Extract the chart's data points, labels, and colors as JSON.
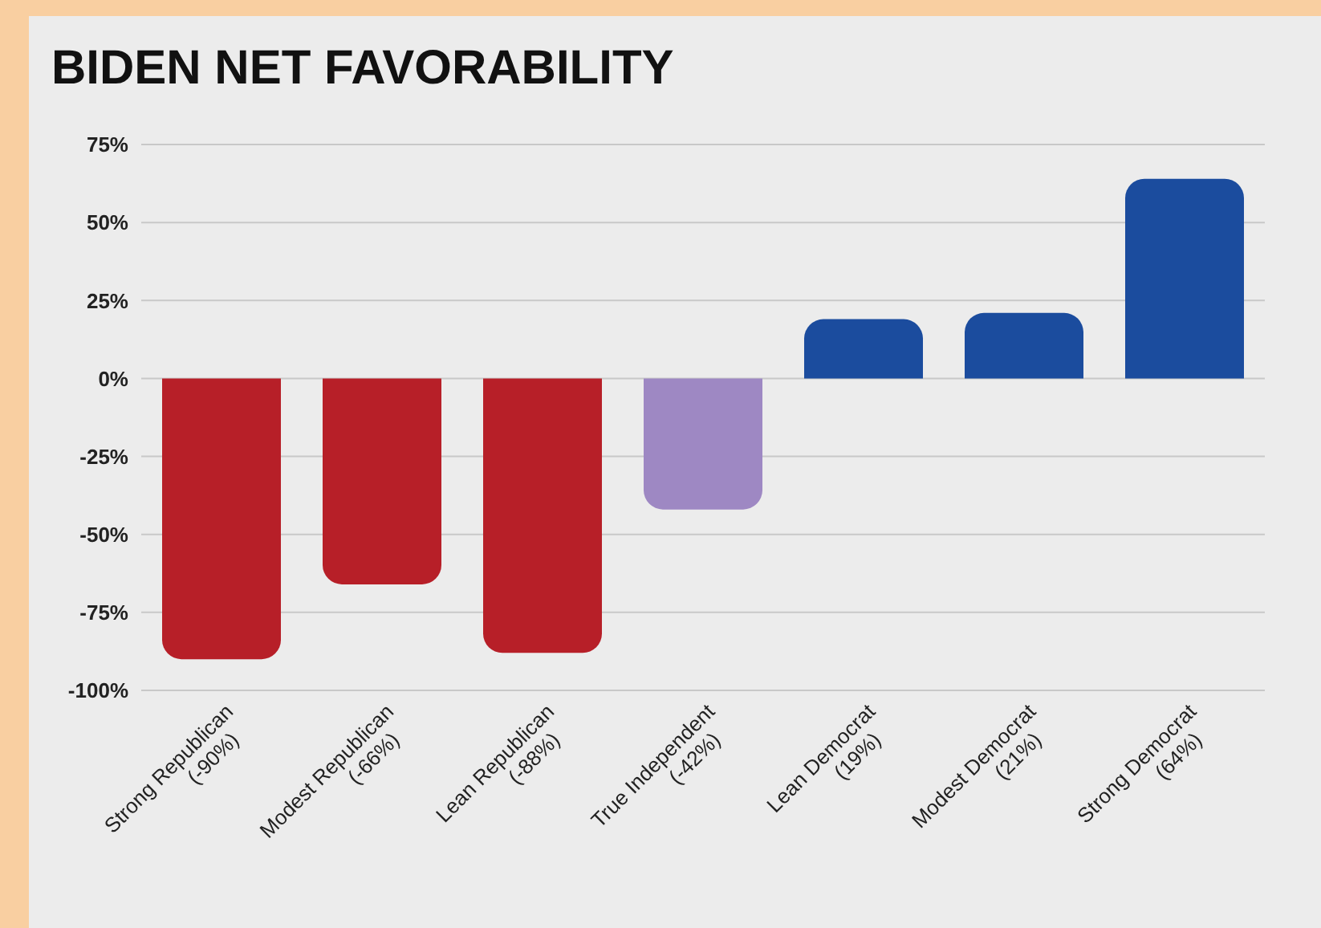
{
  "chart_data": {
    "type": "bar",
    "title": "BIDEN NET FAVORABILITY",
    "categories": [
      "Strong Republican\n(-90%)",
      "Modest Republican\n(-66%)",
      "Lean Republican\n(-88%)",
      "True Independent\n(-42%)",
      "Lean Democrat\n(19%)",
      "Modest Democrat\n(21%)",
      "Strong Democrat\n(64%)"
    ],
    "values": [
      -90,
      -66,
      -88,
      -42,
      19,
      21,
      64
    ],
    "colors": [
      "#b71f28",
      "#b71f28",
      "#b71f28",
      "#9e88c3",
      "#1b4c9e",
      "#1b4c9e",
      "#1b4c9e"
    ],
    "ylim": [
      -100,
      75
    ],
    "yticks": [
      {
        "value": 75,
        "label": "75%"
      },
      {
        "value": 50,
        "label": "50%"
      },
      {
        "value": 25,
        "label": "25%"
      },
      {
        "value": 0,
        "label": "0%"
      },
      {
        "value": -25,
        "label": "-25%"
      },
      {
        "value": -50,
        "label": "-50%"
      },
      {
        "value": -75,
        "label": "-75%"
      },
      {
        "value": -100,
        "label": "-100%"
      }
    ],
    "grid": "y"
  }
}
